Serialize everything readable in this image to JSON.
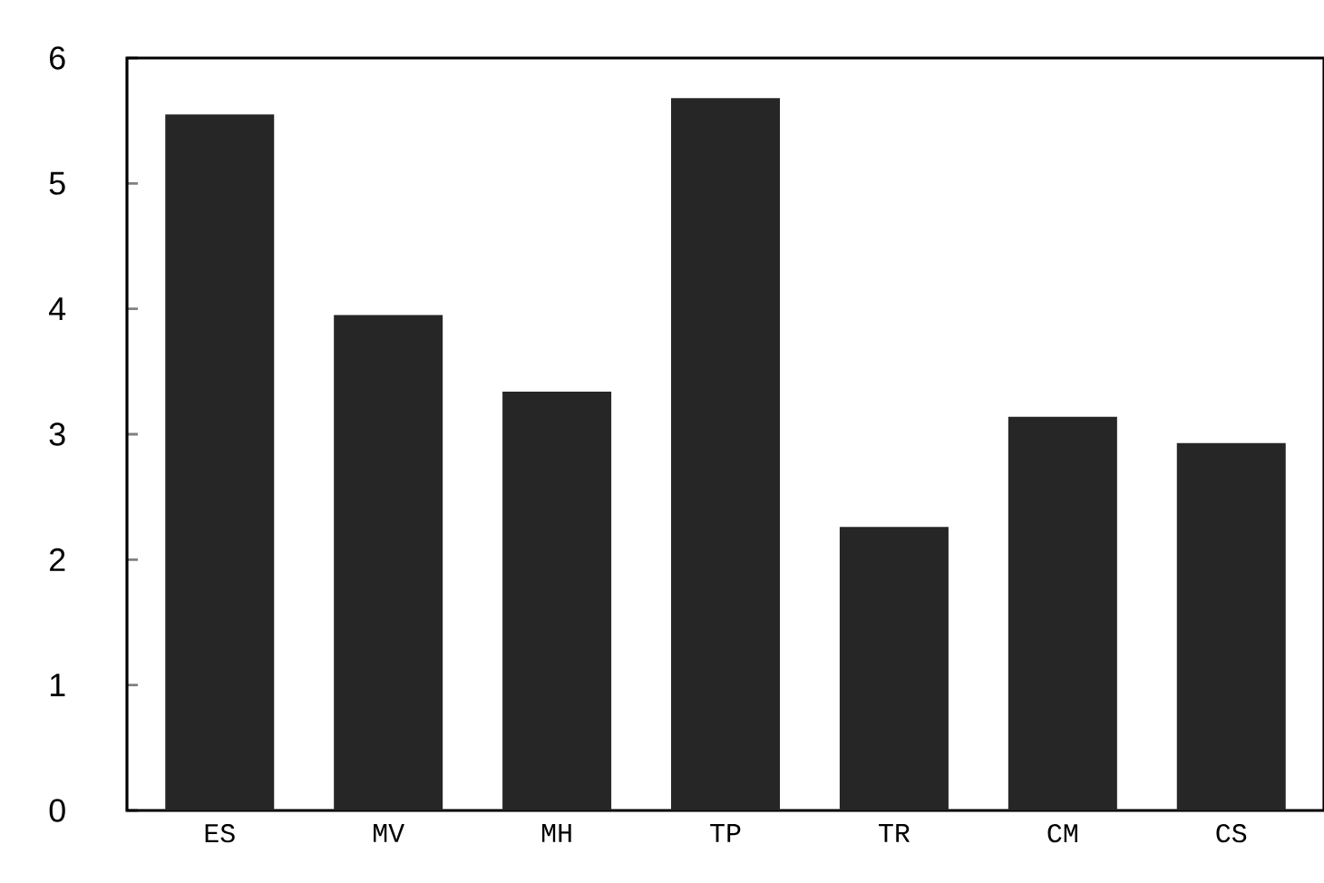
{
  "chart_data": {
    "type": "bar",
    "categories": [
      "ES",
      "MV",
      "MH",
      "TP",
      "TR",
      "CM",
      "CS"
    ],
    "values": [
      5.55,
      3.95,
      3.34,
      5.68,
      2.26,
      3.14,
      2.93
    ],
    "color": "#262626",
    "ylim": [
      0,
      6
    ],
    "yticks": [
      0,
      1,
      2,
      3,
      4,
      5,
      6
    ],
    "grid": false
  }
}
